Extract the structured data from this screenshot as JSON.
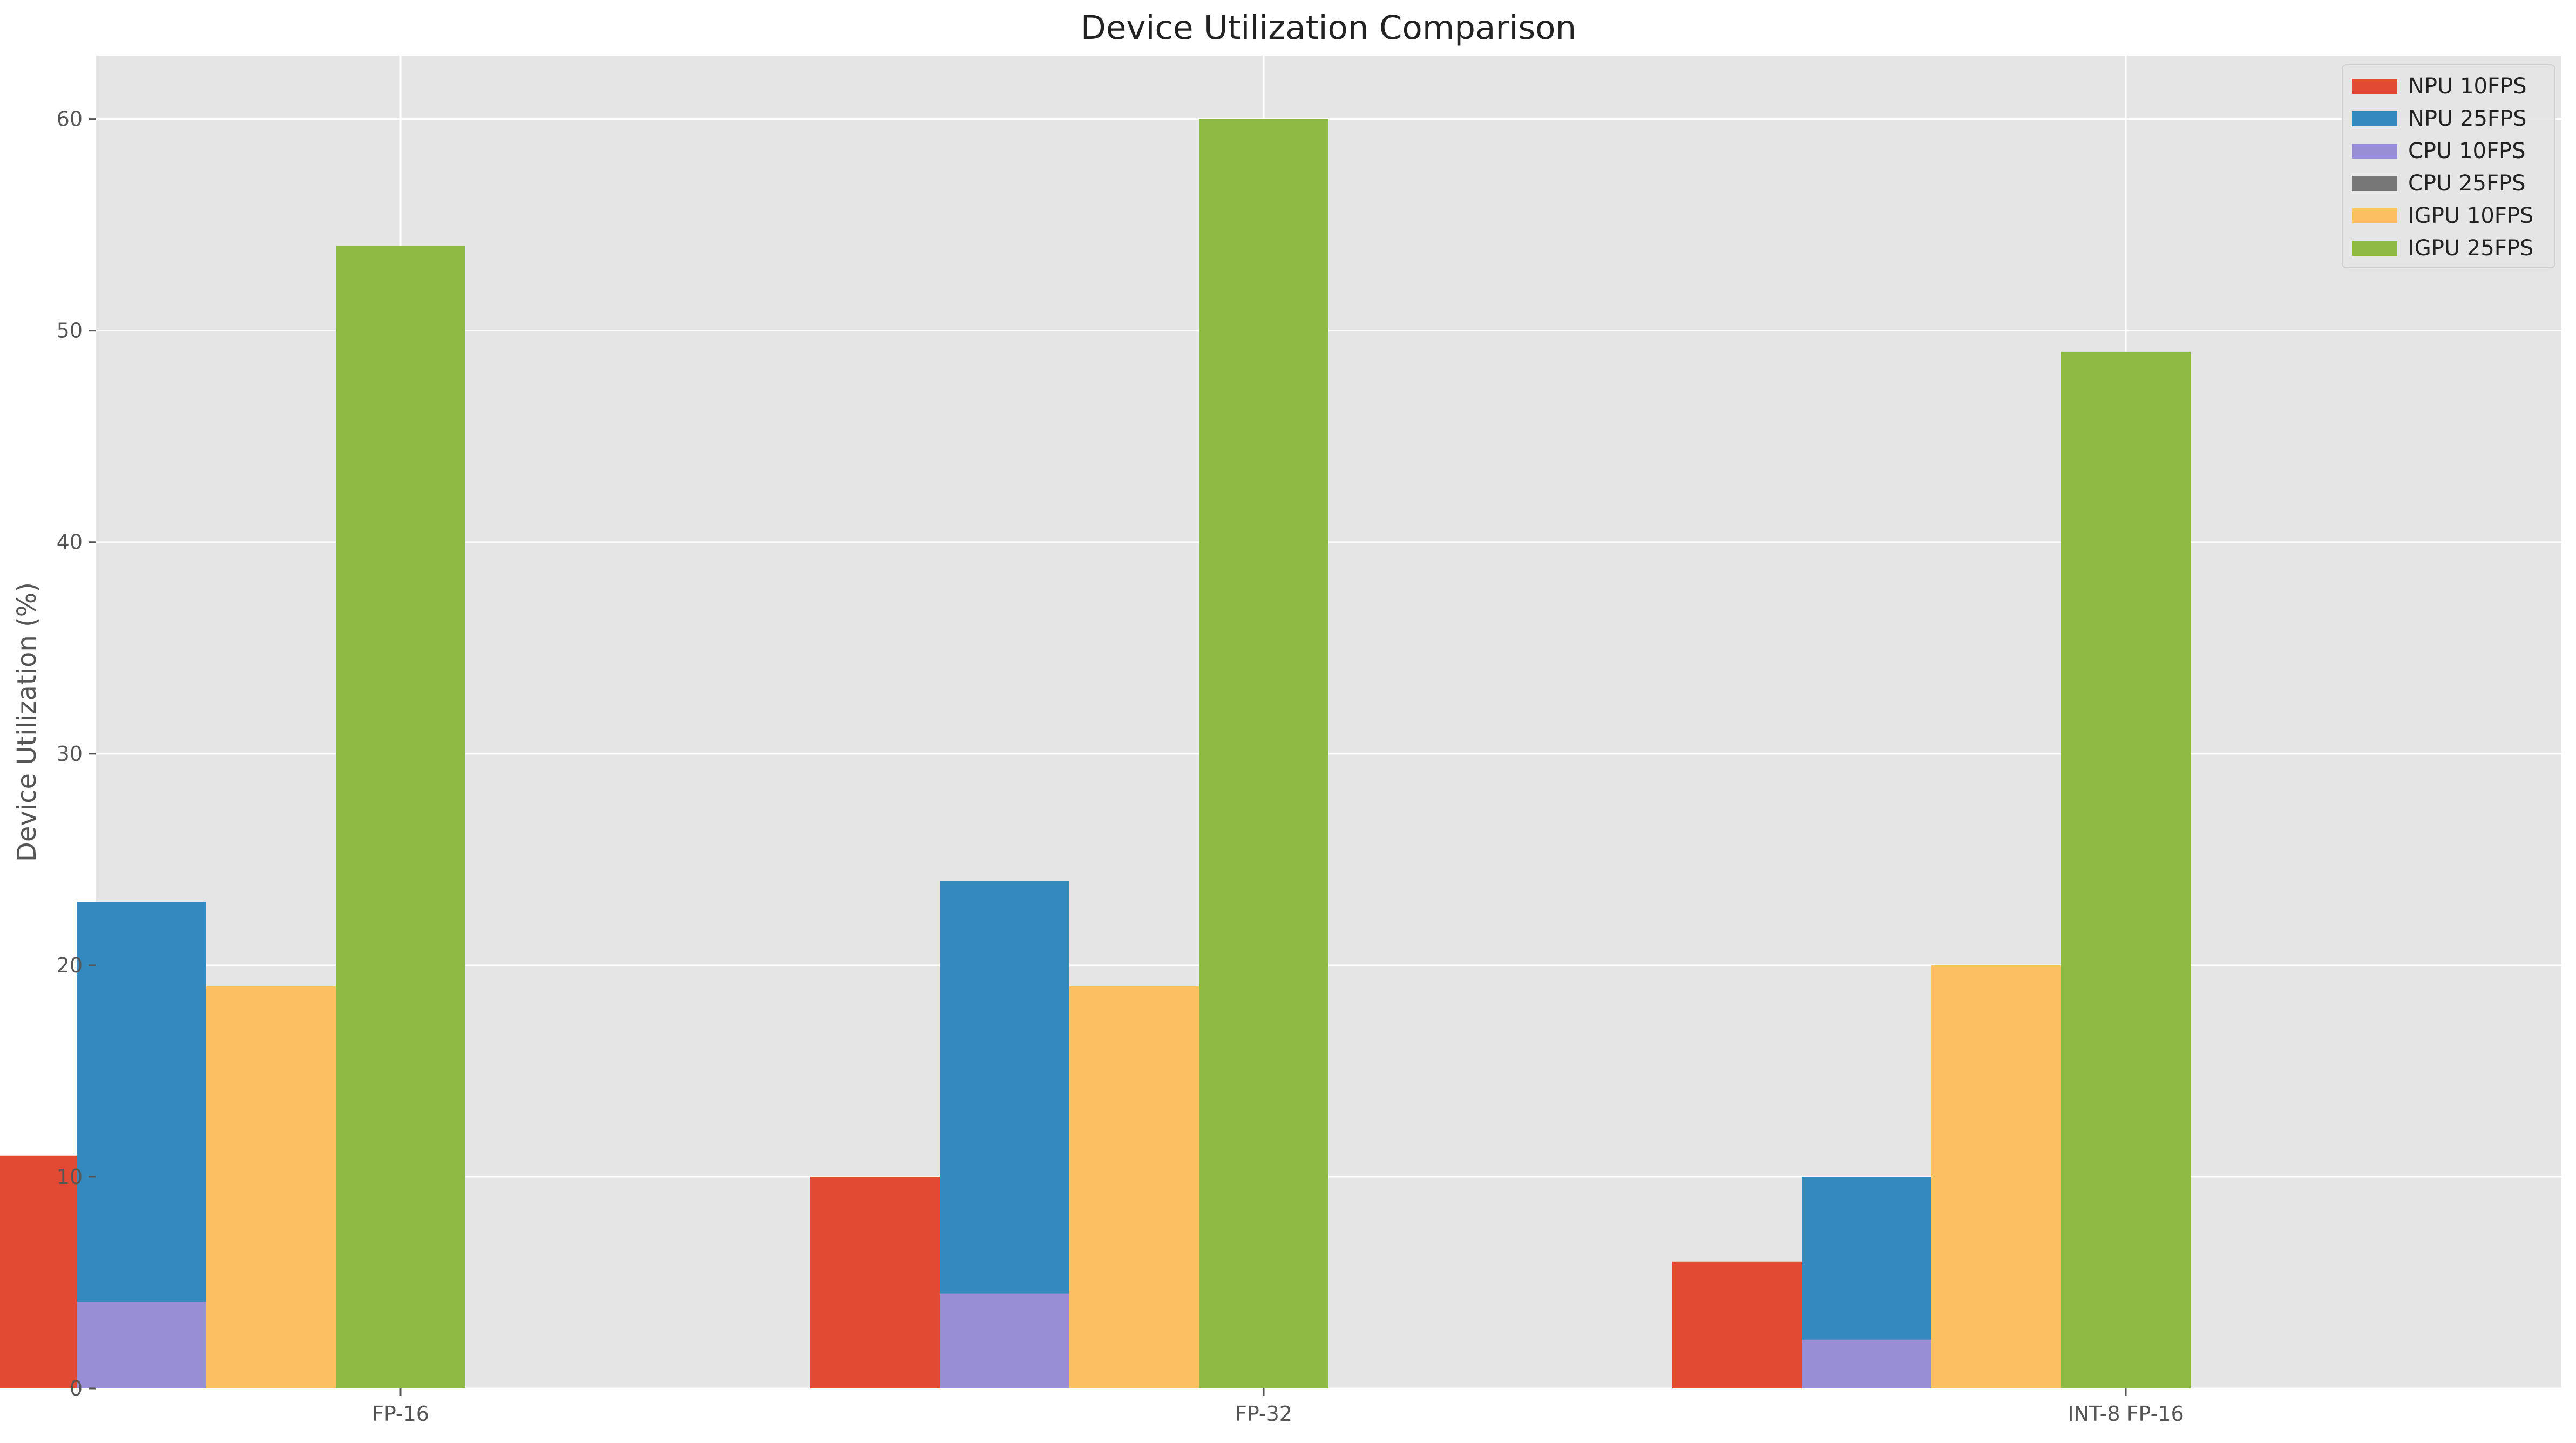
{
  "chart_data": {
    "type": "bar",
    "title": "Device Utilization Comparison",
    "xlabel": "",
    "ylabel": "Device Utilization (%)",
    "ylim": [
      0,
      63
    ],
    "yticks": [
      0,
      10,
      20,
      30,
      40,
      50,
      60
    ],
    "grid": true,
    "legend_position": "top-right",
    "categories": [
      "FP-16",
      "FP-32",
      "INT-8 FP-16"
    ],
    "series": [
      {
        "name": "NPU 10FPS",
        "color": "#E24A33",
        "values": [
          11,
          10,
          6
        ]
      },
      {
        "name": "NPU 25FPS",
        "color": "#348ABD",
        "values": [
          23,
          24,
          10
        ]
      },
      {
        "name": "CPU 10FPS",
        "color": "#988ED5",
        "values": [
          4.1,
          4.5,
          2.3
        ]
      },
      {
        "name": "CPU 25FPS",
        "color": "#777777",
        "values": [
          0,
          0,
          0
        ]
      },
      {
        "name": "IGPU 10FPS",
        "color": "#FBC15E",
        "values": [
          19,
          19,
          20
        ]
      },
      {
        "name": "IGPU 25FPS",
        "color": "#8EBA42",
        "values": [
          54,
          60,
          49
        ]
      }
    ],
    "bar_positions": [
      "-3",
      "-2",
      "-2",
      "-2",
      "-1",
      "0"
    ]
  }
}
